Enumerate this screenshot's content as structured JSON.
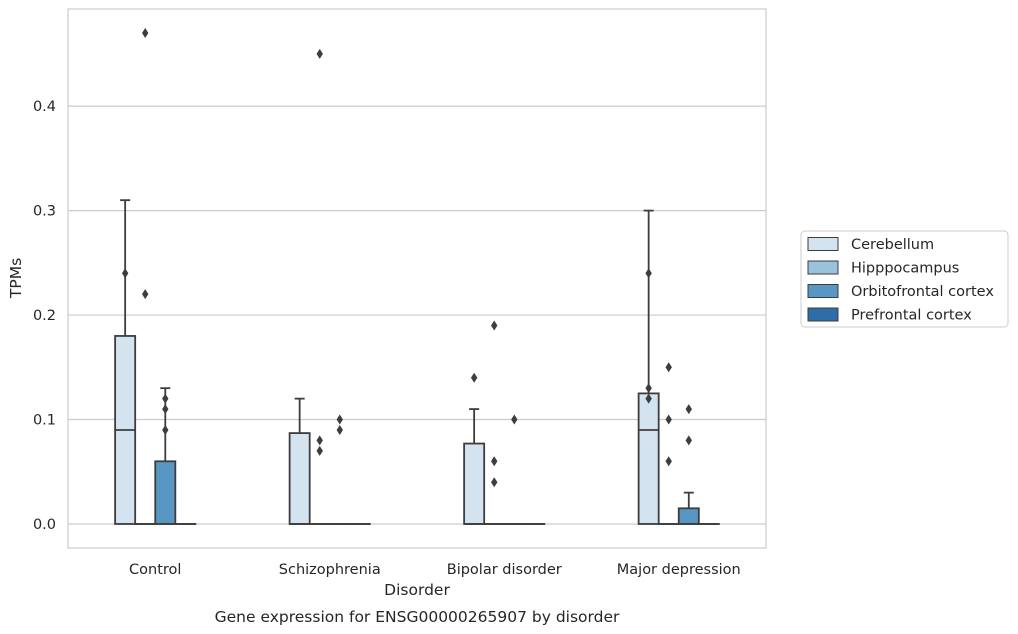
{
  "chart_data": {
    "type": "box",
    "title": "",
    "caption": "Gene expression for ENSG00000265907 by disorder",
    "xlabel": "Disorder",
    "ylabel": "TPMs",
    "ylim": [
      -0.023,
      0.493
    ],
    "yticks": [
      0.0,
      0.1,
      0.2,
      0.3,
      0.4
    ],
    "ytick_labels": [
      "0.0",
      "0.1",
      "0.2",
      "0.3",
      "0.4"
    ],
    "grid": "y",
    "legend_position": "right",
    "categories": [
      "Control",
      "Schizophrenia",
      "Bipolar disorder",
      "Major depression"
    ],
    "series": [
      {
        "name": "Cerebellum",
        "color": "#d4e3f0",
        "boxes": [
          {
            "q1": 0.0,
            "median": 0.09,
            "q3": 0.18,
            "whisker_low": 0.0,
            "whisker_high": 0.31,
            "outliers": [
              0.24
            ]
          },
          {
            "q1": 0.0,
            "median": 0.0,
            "q3": 0.087,
            "whisker_low": 0.0,
            "whisker_high": 0.12,
            "outliers": []
          },
          {
            "q1": 0.0,
            "median": 0.0,
            "q3": 0.077,
            "whisker_low": 0.0,
            "whisker_high": 0.11,
            "outliers": [
              0.14
            ]
          },
          {
            "q1": 0.0,
            "median": 0.09,
            "q3": 0.125,
            "whisker_low": 0.0,
            "whisker_high": 0.3,
            "outliers": [
              0.24,
              0.13,
              0.12
            ]
          }
        ]
      },
      {
        "name": "Hipppocampus",
        "color": "#9ac2dc",
        "boxes": [
          {
            "q1": 0.0,
            "median": 0.0,
            "q3": 0.0,
            "whisker_low": 0.0,
            "whisker_high": 0.0,
            "outliers": [
              0.47,
              0.22
            ]
          },
          {
            "q1": 0.0,
            "median": 0.0,
            "q3": 0.0,
            "whisker_low": 0.0,
            "whisker_high": 0.0,
            "outliers": [
              0.45,
              0.08,
              0.07
            ]
          },
          {
            "q1": 0.0,
            "median": 0.0,
            "q3": 0.0,
            "whisker_low": 0.0,
            "whisker_high": 0.0,
            "outliers": [
              0.19,
              0.06,
              0.04
            ]
          },
          {
            "q1": 0.0,
            "median": 0.0,
            "q3": 0.0,
            "whisker_low": 0.0,
            "whisker_high": 0.0,
            "outliers": [
              0.15,
              0.1,
              0.06
            ]
          }
        ]
      },
      {
        "name": "Orbitofrontal cortex",
        "color": "#5896c4",
        "boxes": [
          {
            "q1": 0.0,
            "median": 0.0,
            "q3": 0.06,
            "whisker_low": 0.0,
            "whisker_high": 0.13,
            "outliers": [
              0.12,
              0.11,
              0.09
            ]
          },
          {
            "q1": 0.0,
            "median": 0.0,
            "q3": 0.0,
            "whisker_low": 0.0,
            "whisker_high": 0.0,
            "outliers": [
              0.1,
              0.09
            ]
          },
          {
            "q1": 0.0,
            "median": 0.0,
            "q3": 0.0,
            "whisker_low": 0.0,
            "whisker_high": 0.0,
            "outliers": [
              0.1
            ]
          },
          {
            "q1": 0.0,
            "median": 0.0,
            "q3": 0.015,
            "whisker_low": 0.0,
            "whisker_high": 0.03,
            "outliers": [
              0.11,
              0.08
            ]
          }
        ]
      },
      {
        "name": "Prefrontal cortex",
        "color": "#2f6da8",
        "boxes": [
          {
            "q1": 0.0,
            "median": 0.0,
            "q3": 0.0,
            "whisker_low": 0.0,
            "whisker_high": 0.0,
            "outliers": []
          },
          {
            "q1": 0.0,
            "median": 0.0,
            "q3": 0.0,
            "whisker_low": 0.0,
            "whisker_high": 0.0,
            "outliers": []
          },
          {
            "q1": 0.0,
            "median": 0.0,
            "q3": 0.0,
            "whisker_low": 0.0,
            "whisker_high": 0.0,
            "outliers": []
          },
          {
            "q1": 0.0,
            "median": 0.0,
            "q3": 0.0,
            "whisker_low": 0.0,
            "whisker_high": 0.0,
            "outliers": []
          }
        ]
      }
    ]
  }
}
